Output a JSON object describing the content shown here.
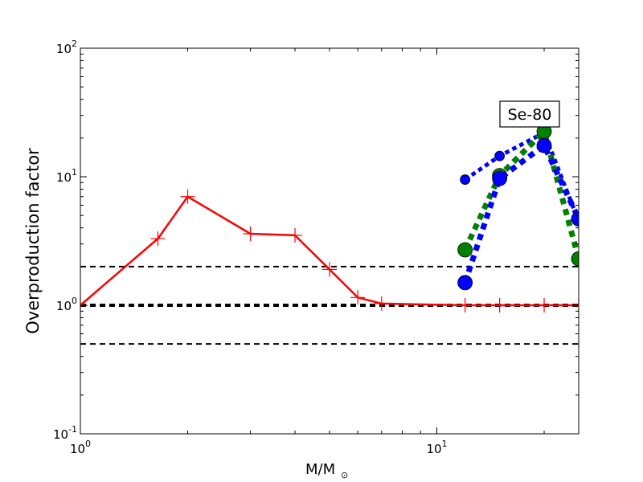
{
  "chart_data": {
    "type": "line",
    "title": "",
    "xlabel_main": "M/M",
    "xlabel_sub": "⊙",
    "ylabel": "Overproduction factor",
    "xscale": "log",
    "yscale": "log",
    "xlim": [
      1,
      25
    ],
    "ylim": [
      0.1,
      100
    ],
    "x_ticks": [
      {
        "value": 1,
        "base": "10",
        "exp": "0"
      },
      {
        "value": 10,
        "base": "10",
        "exp": "1"
      }
    ],
    "y_ticks": [
      {
        "value": 0.1,
        "base": "10",
        "exp": "-1"
      },
      {
        "value": 1,
        "base": "10",
        "exp": "0"
      },
      {
        "value": 10,
        "base": "10",
        "exp": "1"
      },
      {
        "value": 100,
        "base": "10",
        "exp": "2"
      }
    ],
    "annotation": "Se-80",
    "reference_lines": [
      {
        "y": 2.0,
        "color": "#000000",
        "style": "dashed",
        "width": 2
      },
      {
        "y": 1.0,
        "color": "#000000",
        "style": "dashed",
        "width": 4
      },
      {
        "y": 0.5,
        "color": "#000000",
        "style": "dashed",
        "width": 2
      }
    ],
    "series": [
      {
        "color": "#ff0000",
        "style": "solid",
        "width": 2.5,
        "marker": "plus",
        "points": [
          [
            1.0,
            1.0
          ],
          [
            1.65,
            3.3
          ],
          [
            2.0,
            7.0
          ],
          [
            3.0,
            3.6
          ],
          [
            4.0,
            3.5
          ],
          [
            5.0,
            1.9
          ],
          [
            6.0,
            1.15
          ],
          [
            7.0,
            1.03
          ],
          [
            12.0,
            1.0
          ],
          [
            15.0,
            1.0
          ],
          [
            20.0,
            1.0
          ],
          [
            25.0,
            1.0
          ]
        ]
      },
      {
        "color": "#0000ff",
        "style": "dotted",
        "width": 5,
        "marker": "circle",
        "marker_size": 6,
        "points": [
          [
            12.0,
            9.5
          ],
          [
            15.0,
            14.5
          ],
          [
            20.0,
            22.0
          ],
          [
            25.0,
            4.5
          ]
        ]
      },
      {
        "color": "#008000",
        "style": "dotted",
        "width": 7,
        "marker": "circle",
        "marker_size": 9,
        "points": [
          [
            12.0,
            2.7
          ],
          [
            15.0,
            10.2
          ],
          [
            20.0,
            22.5
          ],
          [
            25.0,
            2.3
          ]
        ]
      },
      {
        "color": "#0000ff",
        "style": "dotted",
        "width": 7,
        "marker": "circle",
        "marker_size": 9,
        "points": [
          [
            12.0,
            1.5
          ],
          [
            15.0,
            9.7
          ],
          [
            20.0,
            17.5
          ],
          [
            25.0,
            4.7
          ]
        ]
      }
    ]
  }
}
